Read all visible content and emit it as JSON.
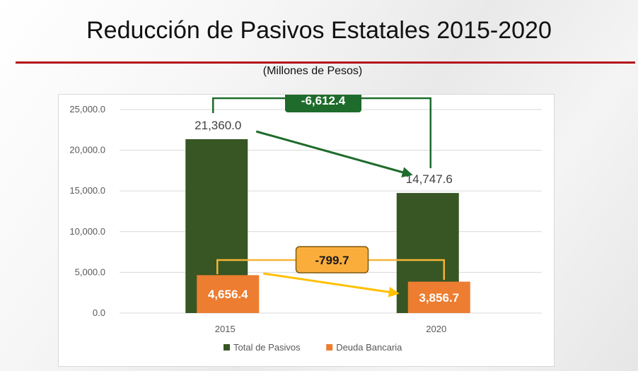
{
  "page": {
    "title": "Reducción de Pasivos Estatales 2015-2020",
    "subtitle": "(Millones de Pesos)",
    "accent_color": "#b3121b"
  },
  "chart_data": {
    "type": "bar",
    "categories": [
      "2015",
      "2020"
    ],
    "series": [
      {
        "name": "Total de Pasivos",
        "color": "#375623",
        "values": [
          21360.0,
          14747.6
        ],
        "labels": [
          "21,360.0",
          "14,747.6"
        ]
      },
      {
        "name": "Deuda Bancaria",
        "color": "#ed7d31",
        "values": [
          4656.4,
          3856.7
        ],
        "labels": [
          "4,656.4",
          "3,856.7"
        ]
      }
    ],
    "ylim": [
      0,
      25000
    ],
    "yticks": [
      0,
      5000,
      10000,
      15000,
      20000,
      25000
    ],
    "ytick_labels": [
      "0.0",
      "5,000.0",
      "10,000.0",
      "15,000.0",
      "20,000.0",
      "25,000.0"
    ],
    "grid": true,
    "legend": "bottom",
    "annotations": [
      {
        "series": 0,
        "text": "-6,612.4",
        "box_color": "#1e6b2b",
        "line_color": "#1e6b2b",
        "text_color": "#ffffff"
      },
      {
        "series": 1,
        "text": "-799.7",
        "box_color": "#fbad3c",
        "line_color": "#f5b335",
        "text_color": "#1a1a1a",
        "arrow_color": "#ffc000"
      }
    ]
  }
}
